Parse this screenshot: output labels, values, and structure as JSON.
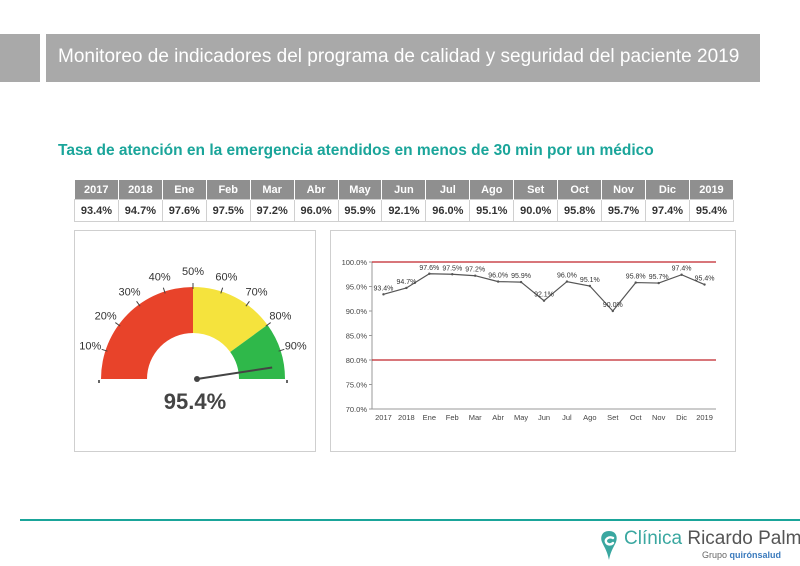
{
  "header": {
    "title": "Monitoreo de indicadores del programa de calidad y seguridad del paciente 2019"
  },
  "subtitle": "Tasa de atención en la emergencia atendidos en menos de 30 min por un médico",
  "table": {
    "headers": [
      "2017",
      "2018",
      "Ene",
      "Feb",
      "Mar",
      "Abr",
      "May",
      "Jun",
      "Jul",
      "Ago",
      "Set",
      "Oct",
      "Nov",
      "Dic",
      "2019"
    ],
    "values": [
      "93.4%",
      "94.7%",
      "97.6%",
      "97.5%",
      "97.2%",
      "96.0%",
      "95.9%",
      "92.1%",
      "96.0%",
      "95.1%",
      "90.0%",
      "95.8%",
      "95.7%",
      "97.4%",
      "95.4%"
    ]
  },
  "colors": {
    "teal": "#1aa59a",
    "header_gray": "#a9a9a9",
    "gauge_red": "#e8432a",
    "gauge_yellow": "#f5e33d",
    "gauge_green": "#2fb84a",
    "line_color": "#555555",
    "threshold_color": "#c0242b"
  },
  "chart_data": [
    {
      "type": "gauge",
      "value": 95.4,
      "value_label": "95.4%",
      "min": 0,
      "max": 100,
      "tick_labels": [
        "10%",
        "20%",
        "30%",
        "40%",
        "50%",
        "60%",
        "70%",
        "80%",
        "90%"
      ],
      "bands": [
        {
          "from": 0,
          "to": 50,
          "color": "#e8432a"
        },
        {
          "from": 50,
          "to": 80,
          "color": "#f5e33d"
        },
        {
          "from": 80,
          "to": 100,
          "color": "#2fb84a"
        }
      ]
    },
    {
      "type": "line",
      "categories": [
        "2017",
        "2018",
        "Ene",
        "Feb",
        "Mar",
        "Abr",
        "May",
        "Jun",
        "Jul",
        "Ago",
        "Set",
        "Oct",
        "Nov",
        "Dic",
        "2019"
      ],
      "values": [
        93.4,
        94.7,
        97.6,
        97.5,
        97.2,
        96.0,
        95.9,
        92.1,
        96.0,
        95.1,
        90.0,
        95.8,
        95.7,
        97.4,
        95.4
      ],
      "point_labels": [
        "93.4%",
        "94.7%",
        "97.6%",
        "97.5%",
        "97.2%",
        "96.0%",
        "95.9%",
        "92.1%",
        "96.0%",
        "95.1%",
        "90.0%",
        "95.8%",
        "95.7%",
        "97.4%",
        "95.4%"
      ],
      "ylim": [
        70,
        100
      ],
      "yticks": [
        70,
        75,
        80,
        85,
        90,
        95,
        100
      ],
      "ytick_labels": [
        "70.0%",
        "75.0%",
        "80.0%",
        "85.0%",
        "90.0%",
        "95.0%",
        "100.0%"
      ],
      "thresholds": [
        100,
        80
      ],
      "grid": false
    }
  ],
  "logo": {
    "word1": "Clínica",
    "word2": "Ricardo Palma",
    "sub_prefix": "Grupo",
    "sub_brand": "quirónsalud"
  }
}
